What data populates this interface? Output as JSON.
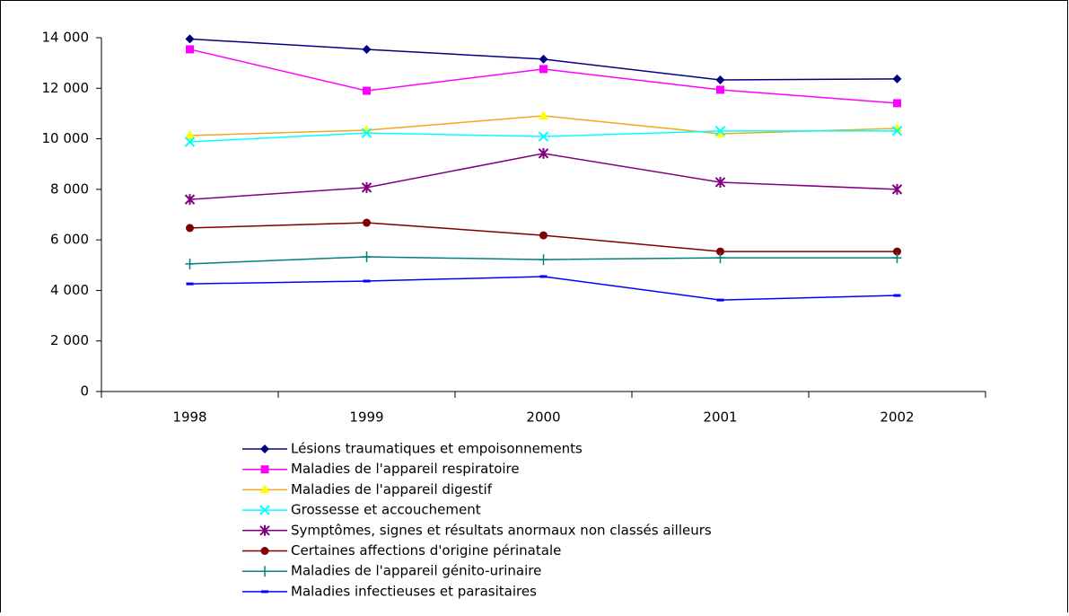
{
  "chart_data": {
    "type": "line",
    "categories": [
      "1998",
      "1999",
      "2000",
      "2001",
      "2002"
    ],
    "ylim": [
      0,
      14000
    ],
    "yticks": [
      0,
      {
        "value": 2000,
        "label": "2 000"
      },
      {
        "value": 4000,
        "label": "4 000"
      },
      {
        "value": 6000,
        "label": "6 000"
      },
      {
        "value": 8000,
        "label": "8 000"
      },
      {
        "value": 10000,
        "label": "10 000"
      },
      {
        "value": 12000,
        "label": "12 000"
      },
      {
        "value": 14000,
        "label": "14 000"
      }
    ],
    "grid": false,
    "legend": "bottom",
    "series": [
      {
        "name": "Lésions traumatiques et empoisonnements",
        "color": "#000080",
        "marker": "diamond",
        "values": [
          13950,
          13540,
          13150,
          12330,
          12370
        ]
      },
      {
        "name": "Maladies de l'appareil respiratoire",
        "color": "#FF00FF",
        "marker": "square",
        "values": [
          13540,
          11900,
          12760,
          11940,
          11410
        ]
      },
      {
        "name": "Maladies de l'appareil digestif",
        "color": "#F5A623",
        "marker_color": "#FFFF00",
        "marker": "triangle",
        "values": [
          10130,
          10340,
          10910,
          10200,
          10410
        ]
      },
      {
        "name": "Grossesse et accouchement",
        "color": "#00FFFF",
        "marker": "cross",
        "values": [
          9880,
          10230,
          10090,
          10310,
          10310
        ]
      },
      {
        "name": "Symptômes, signes et résultats anormaux non classés ailleurs",
        "color": "#800080",
        "marker": "star",
        "values": [
          7600,
          8070,
          9420,
          8280,
          8000
        ]
      },
      {
        "name": "Certaines affections d'origine périnatale",
        "color": "#800000",
        "marker": "circle",
        "values": [
          6470,
          6680,
          6180,
          5540,
          5540
        ]
      },
      {
        "name": "Maladies de l'appareil génito-urinaire",
        "color": "#008080",
        "marker": "plus",
        "values": [
          5050,
          5330,
          5220,
          5290,
          5290
        ]
      },
      {
        "name": "Maladies infectieuses et parasitaires",
        "color": "#0000FF",
        "marker": "dash",
        "values": [
          4260,
          4370,
          4550,
          3620,
          3800
        ]
      }
    ]
  }
}
